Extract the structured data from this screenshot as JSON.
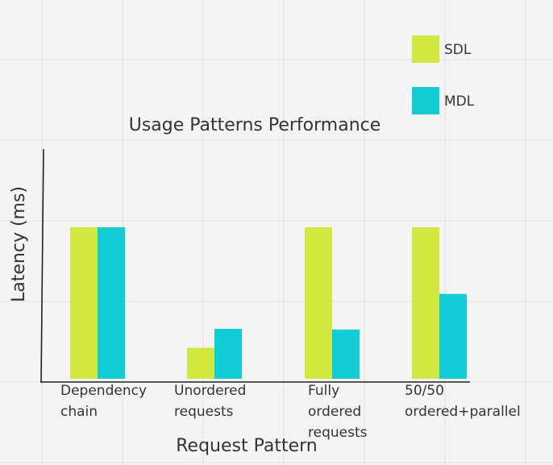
{
  "chart_data": {
    "type": "bar",
    "title": "Usage Patterns Performance",
    "xlabel": "Request Pattern",
    "ylabel": "Latency (ms)",
    "categories": [
      [
        "Dependency",
        "chain"
      ],
      [
        "Unordered",
        "requests"
      ],
      [
        "Fully",
        "ordered",
        "requests"
      ],
      [
        "50/50",
        "ordered+parallel"
      ]
    ],
    "series": [
      {
        "name": "SDL",
        "color": "#d1e83f",
        "values": [
          100,
          20.5,
          100,
          100
        ]
      },
      {
        "name": "MDL",
        "color": "#13cdd6",
        "values": [
          100,
          33,
          32.5,
          56
        ]
      }
    ],
    "ylim": [
      0,
      152
    ],
    "grid": true,
    "legend_position": "top-right",
    "y_tick_labels": "none"
  }
}
